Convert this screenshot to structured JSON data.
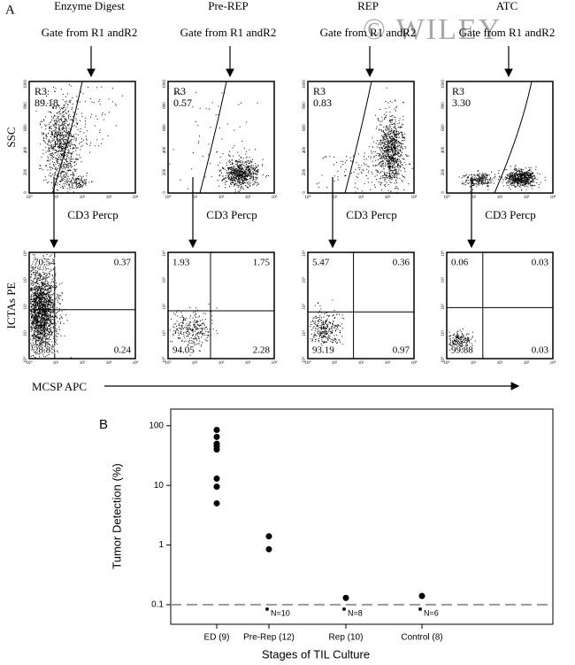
{
  "panel_a": {
    "label": "A",
    "watermark": "© WILEY",
    "columns": [
      {
        "title": "Enzyme Digest",
        "gate": "Gate from R1 andR2",
        "region": "R3",
        "region_value": "89.18",
        "x_label": "CD3 Percp",
        "quadrants": [
          "70.54",
          "0.37",
          "28.85",
          "0.24"
        ]
      },
      {
        "title": "Pre-REP",
        "gate": "Gate from R1 andR2",
        "region": "R3",
        "region_value": "0.57",
        "x_label": "CD3 Percp",
        "quadrants": [
          "1.93",
          "1.75",
          "94.05",
          "2.28"
        ]
      },
      {
        "title": "REP",
        "gate": "Gate from R1 andR2",
        "region": "R3",
        "region_value": "0.83",
        "x_label": "CD3 Percp",
        "quadrants": [
          "5.47",
          "0.36",
          "93.19",
          "0.97"
        ]
      },
      {
        "title": "ATC",
        "gate": "Gate from R1 andR2",
        "region": "R3",
        "region_value": "3.30",
        "x_label": "CD3 Percp",
        "quadrants": [
          "0.06",
          "0.03",
          "99.88",
          "0.03"
        ]
      }
    ],
    "ssc_label": "SSC",
    "ictas_label": "ICTAs PE",
    "mcsp_label": "MCSP APC",
    "log_ticks": [
      "10⁰",
      "10¹",
      "10²",
      "10³",
      "10⁴"
    ],
    "ssc_ticks": [
      "0",
      "200",
      "400",
      "600",
      "800",
      "1000"
    ]
  },
  "chart_data": {
    "type": "scatter",
    "label": "B",
    "categories": [
      "ED (9)",
      "Pre-Rep (12)",
      "Rep (10)",
      "Control (8)"
    ],
    "values": [
      [
        85,
        65,
        50,
        45,
        40,
        13,
        9.5,
        5
      ],
      [
        1.4,
        0.85
      ],
      [
        0.13
      ],
      [
        0.14
      ]
    ],
    "annotations": [
      null,
      "N=10",
      "N=8",
      "N=6"
    ],
    "ylabel": "Tumor Detection (%)",
    "xlabel": "Stages of TIL Culture",
    "log_scale": true,
    "ylim": [
      0.047,
      190
    ],
    "yticks": [
      0.1,
      1,
      10,
      100
    ],
    "reference_line": 0.1,
    "color": "#000000"
  }
}
